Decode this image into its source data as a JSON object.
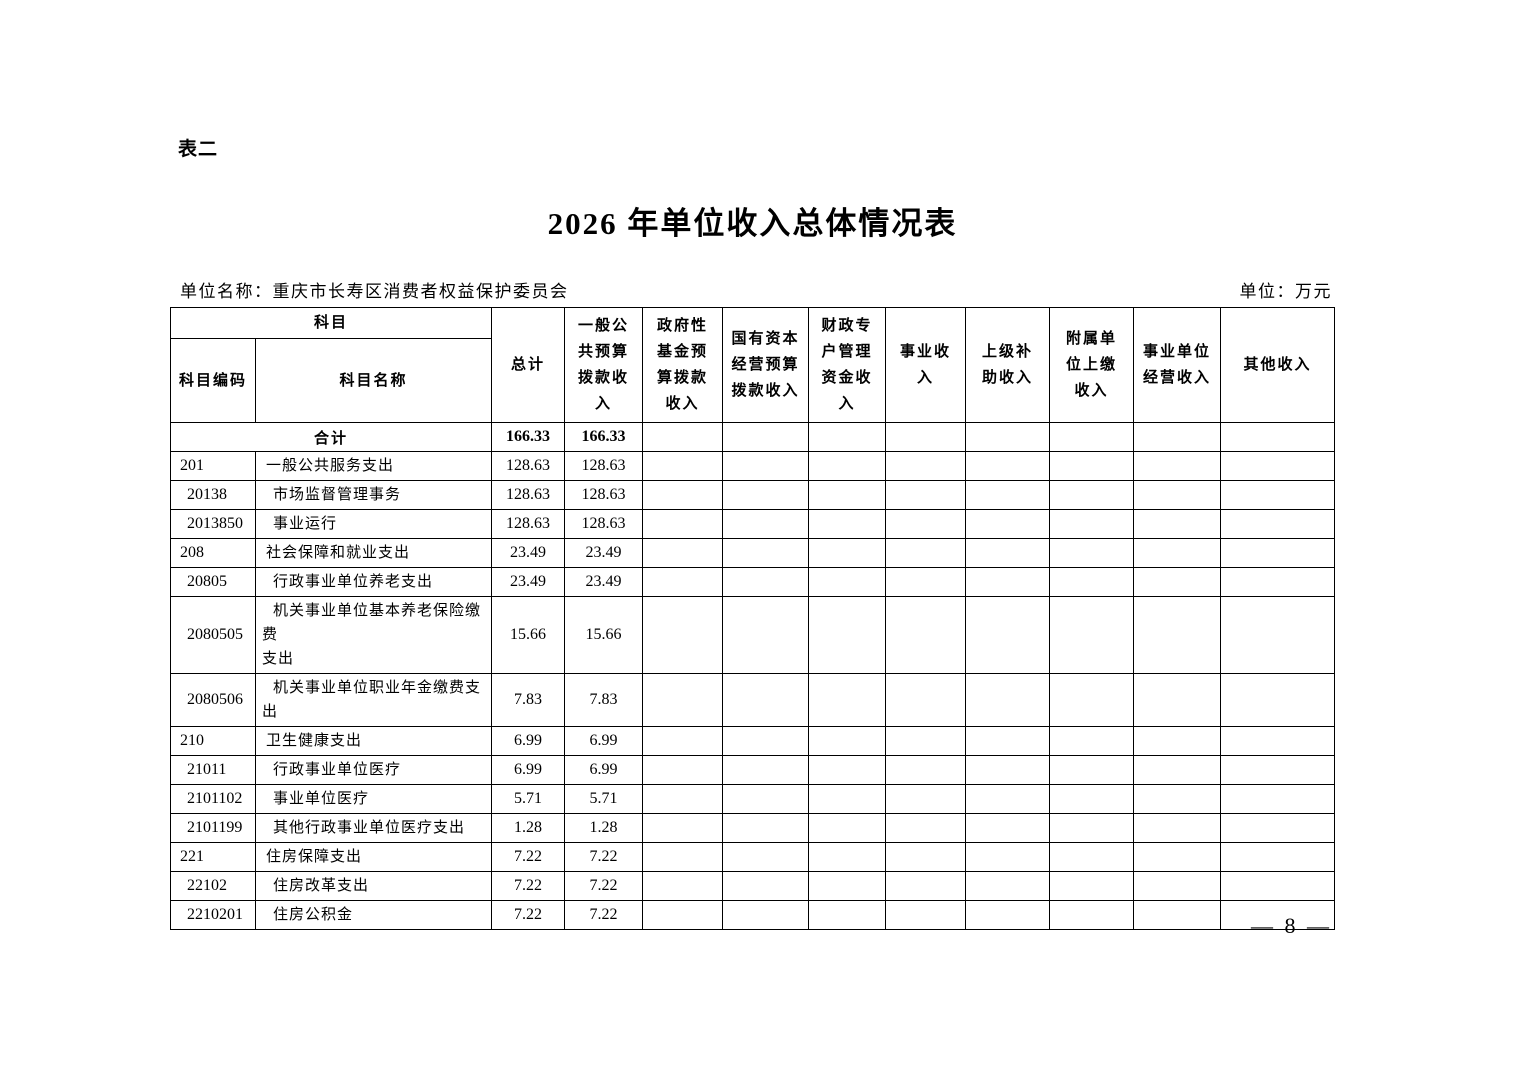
{
  "page": {
    "table_label": "表二",
    "title": "2026 年单位收入总体情况表",
    "unit_name_label": "单位名称：重庆市长寿区消费者权益保护委员会",
    "unit_label": "单位：万元",
    "page_number": "— 8 —"
  },
  "table": {
    "header": {
      "subject_group": "科目",
      "subject_code": "科目编码",
      "subject_name": "科目名称",
      "total": "总计",
      "general_budget": "一般公\n共预算\n拨款收\n入",
      "gov_fund": "政府性\n基金预\n算拨款\n收入",
      "state_capital": "国有资本\n经营预算\n拨款收入",
      "fiscal_account": "财政专\n户管理\n资金收\n入",
      "business_income": "事业收\n入",
      "superior_subsidy": "上级补\n助收入",
      "affiliated_remit": "附属单\n位上缴\n收入",
      "operating_income": "事业单位\n经营收入",
      "other_income": "其他收入"
    },
    "empty_column_count": 8,
    "rows": [
      {
        "code": "",
        "name": "合计",
        "total": "166.33",
        "general_budget": "166.33",
        "merged": true,
        "bold": true,
        "indent": 0
      },
      {
        "code": "201",
        "name": "一般公共服务支出",
        "total": "128.63",
        "general_budget": "128.63",
        "indent": 0
      },
      {
        "code": "20138",
        "name": "市场监督管理事务",
        "total": "128.63",
        "general_budget": "128.63",
        "indent": 1
      },
      {
        "code": "2013850",
        "name": "事业运行",
        "total": "128.63",
        "general_budget": "128.63",
        "indent": 1
      },
      {
        "code": "208",
        "name": "社会保障和就业支出",
        "total": "23.49",
        "general_budget": "23.49",
        "indent": 0
      },
      {
        "code": "20805",
        "name": "行政事业单位养老支出",
        "total": "23.49",
        "general_budget": "23.49",
        "indent": 1
      },
      {
        "code": "2080505",
        "name": "机关事业单位基本养老保险缴费\n支出",
        "total": "15.66",
        "general_budget": "15.66",
        "indent": 1,
        "tall": true
      },
      {
        "code": "2080506",
        "name": "机关事业单位职业年金缴费支出",
        "total": "7.83",
        "general_budget": "7.83",
        "indent": 1
      },
      {
        "code": "210",
        "name": "卫生健康支出",
        "total": "6.99",
        "general_budget": "6.99",
        "indent": 0
      },
      {
        "code": "21011",
        "name": "行政事业单位医疗",
        "total": "6.99",
        "general_budget": "6.99",
        "indent": 1
      },
      {
        "code": "2101102",
        "name": "事业单位医疗",
        "total": "5.71",
        "general_budget": "5.71",
        "indent": 1
      },
      {
        "code": "2101199",
        "name": "其他行政事业单位医疗支出",
        "total": "1.28",
        "general_budget": "1.28",
        "indent": 1
      },
      {
        "code": "221",
        "name": "住房保障支出",
        "total": "7.22",
        "general_budget": "7.22",
        "indent": 0
      },
      {
        "code": "22102",
        "name": "住房改革支出",
        "total": "7.22",
        "general_budget": "7.22",
        "indent": 1
      },
      {
        "code": "2210201",
        "name": "住房公积金",
        "total": "7.22",
        "general_budget": "7.22",
        "indent": 1
      }
    ]
  }
}
